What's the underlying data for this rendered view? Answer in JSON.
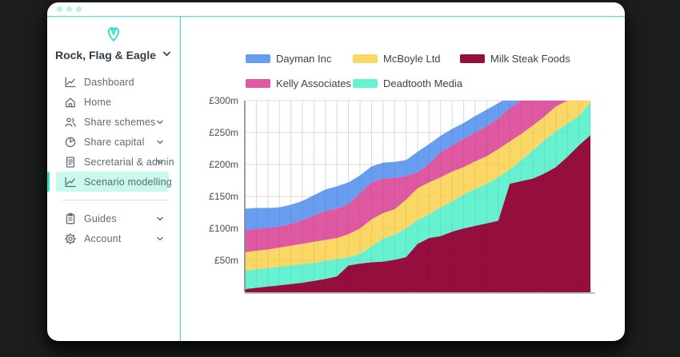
{
  "window": {
    "dots": [
      "window-dot",
      "window-dot",
      "window-dot"
    ]
  },
  "sidebar": {
    "company_name": "Rock, Flag & Eagle",
    "items": [
      {
        "label": "Dashboard",
        "icon": "line-chart",
        "expandable": false,
        "active": false
      },
      {
        "label": "Home",
        "icon": "home",
        "expandable": false,
        "active": false
      },
      {
        "label": "Share schemes",
        "icon": "people",
        "expandable": true,
        "active": false
      },
      {
        "label": "Share capital",
        "icon": "pie-chart",
        "expandable": true,
        "active": false
      },
      {
        "label": "Secretarial & admin",
        "icon": "document",
        "expandable": true,
        "active": false
      },
      {
        "label": "Scenario modelling",
        "icon": "line-chart",
        "expandable": false,
        "active": true
      },
      {
        "divider": true
      },
      {
        "label": "Guides",
        "icon": "clipboard",
        "expandable": true,
        "active": false
      },
      {
        "label": "Account",
        "icon": "gear",
        "expandable": true,
        "active": false
      }
    ]
  },
  "colors": {
    "accent_teal": "#2be3c5",
    "active_item_bg": "#c9f8ec",
    "dayman_blue": "#689df0",
    "mcboyle_yellow": "#fbd766",
    "milksteak_maroon": "#960e3d",
    "kelly_pink": "#df58a2",
    "deadtooth_mint": "#66f2d1"
  },
  "chart_data": {
    "type": "area",
    "stacked": true,
    "title": "",
    "xlabel": "",
    "ylabel": "",
    "ylim": [
      0,
      300
    ],
    "y_tick_labels": [
      "£300m",
      "£250m",
      "£200m",
      "£150m",
      "£100m",
      "£50m"
    ],
    "y_tick_values": [
      300,
      250,
      200,
      150,
      100,
      50
    ],
    "x_point_count": 31,
    "grid": {
      "vertical": true,
      "horizontal": true
    },
    "legend_position": "top",
    "legend_order": [
      "Dayman Inc",
      "McBoyle Ltd",
      "Milk Steak Foods",
      "Kelly Associates",
      "Deadtooth Media"
    ],
    "stack_order_bottom_to_top": [
      "Milk Steak Foods",
      "Deadtooth Media",
      "McBoyle Ltd",
      "Kelly Associates",
      "Dayman Inc"
    ],
    "series": [
      {
        "name": "Milk Steak Foods",
        "color": "#960e3d",
        "values": [
          5,
          7,
          9,
          11,
          13,
          15,
          18,
          21,
          25,
          42,
          45,
          47,
          48,
          51,
          55,
          76,
          85,
          88,
          95,
          100,
          104,
          108,
          112,
          170,
          174,
          178,
          186,
          196,
          212,
          230,
          246
        ]
      },
      {
        "name": "Deadtooth Media",
        "color": "#66f2d1",
        "values": [
          29,
          29,
          29,
          29,
          29,
          29,
          28,
          28,
          27,
          13,
          15,
          25,
          36,
          39,
          45,
          37,
          37,
          45,
          47,
          53,
          58,
          62,
          68,
          22,
          33,
          44,
          52,
          56,
          52,
          46,
          51
        ]
      },
      {
        "name": "McBoyle Ltd",
        "color": "#fbd766",
        "values": [
          29,
          29,
          29,
          30,
          31,
          32,
          33,
          33,
          33,
          36,
          40,
          42,
          40,
          40,
          45,
          50,
          50,
          47,
          47,
          43,
          43,
          43,
          44,
          44,
          41,
          39,
          37,
          39,
          36,
          29,
          13
        ]
      },
      {
        "name": "Kelly Associates",
        "color": "#df58a2",
        "values": [
          34,
          34,
          34,
          33,
          34,
          37,
          41,
          45,
          46,
          47,
          55,
          58,
          54,
          49,
          37,
          25,
          29,
          39,
          41,
          44,
          45,
          47,
          48,
          52,
          52,
          51,
          47,
          43,
          45,
          51,
          58
        ]
      },
      {
        "name": "Dayman Inc",
        "color": "#689df0",
        "values": [
          34,
          33,
          31,
          30,
          30,
          30,
          32,
          34,
          35,
          34,
          28,
          25,
          25,
          25,
          25,
          32,
          31,
          26,
          26,
          25,
          26,
          26,
          24,
          19,
          18,
          18,
          19,
          18,
          18,
          18,
          17
        ]
      }
    ]
  }
}
